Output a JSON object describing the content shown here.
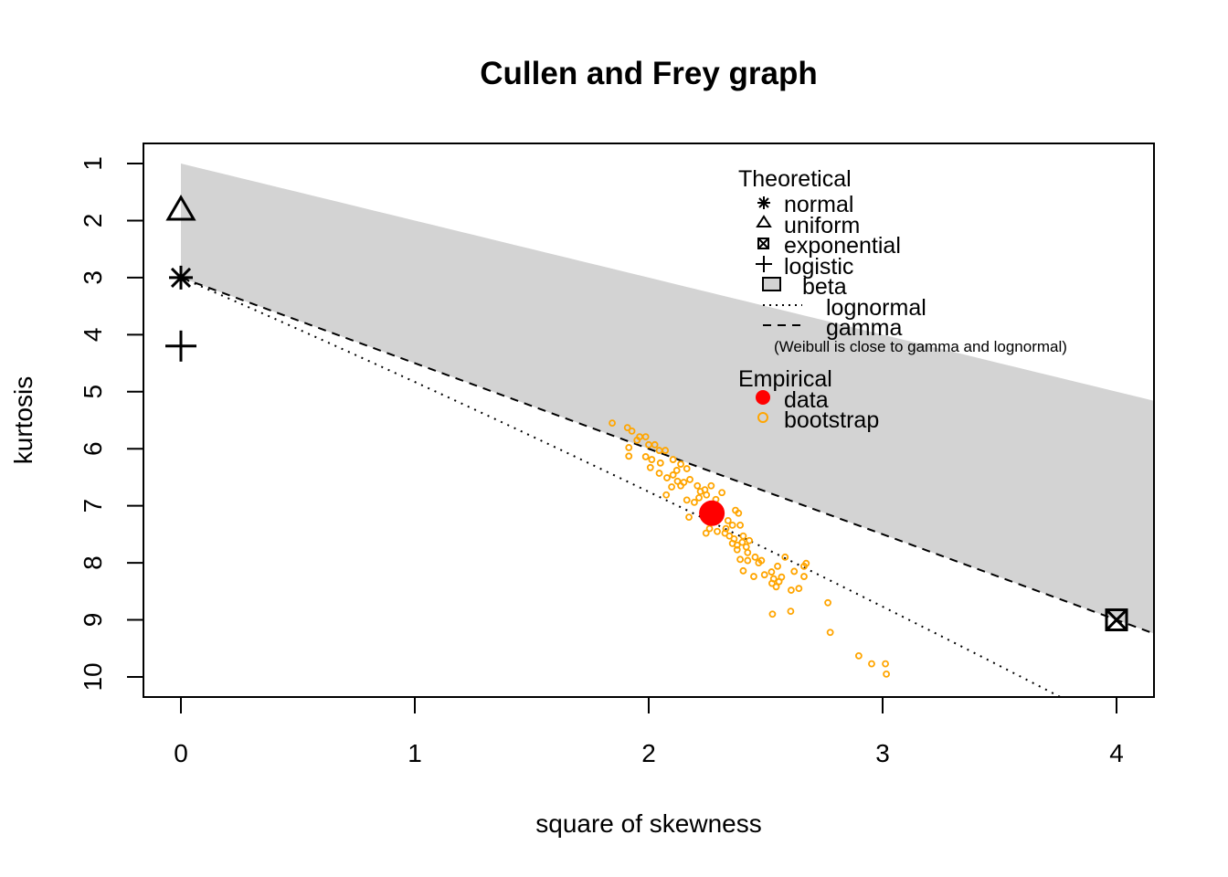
{
  "chart_data": {
    "type": "scatter",
    "title": "Cullen and Frey graph",
    "xlabel": "square of skewness",
    "ylabel": "kurtosis",
    "xlim": [
      -0.16,
      4.16
    ],
    "ylim": [
      10.35,
      0.67
    ],
    "xticks": [
      0,
      1,
      2,
      3,
      4
    ],
    "yticks": [
      1,
      2,
      3,
      4,
      5,
      6,
      7,
      8,
      9,
      10
    ],
    "grid": false,
    "legend": {
      "placement": "top-right",
      "theoretical_title": "Theoretical",
      "theoretical": [
        {
          "label": "normal",
          "marker": "asterisk"
        },
        {
          "label": "uniform",
          "marker": "triangle"
        },
        {
          "label": "exponential",
          "marker": "boxed-x"
        },
        {
          "label": "logistic",
          "marker": "plus"
        },
        {
          "label": "beta",
          "marker": "grey-box"
        },
        {
          "label": "lognormal",
          "marker": "dotted-line"
        },
        {
          "label": "gamma",
          "marker": "dashed-line"
        }
      ],
      "note": "(Weibull is close to gamma and lognormal)",
      "empirical_title": "Empirical",
      "empirical": [
        {
          "label": "data",
          "marker": "filled-circle"
        },
        {
          "label": "bootstrap",
          "marker": "open-circle"
        }
      ]
    },
    "theoretical_points": {
      "normal": [
        0,
        3
      ],
      "uniform": [
        0,
        1.8
      ],
      "logistic": [
        0,
        4.2
      ],
      "exponential": [
        4,
        9
      ]
    },
    "beta_region": "between kurtosis = skew^2 + 1 and gamma line",
    "gamma_line": "kurtosis = 3 + 1.5 * skew^2",
    "lognormal_curve": "parametric",
    "data_point": [
      2.27,
      7.13
    ],
    "bootstrap": [
      [
        1.844,
        5.55
      ],
      [
        1.909,
        5.63
      ],
      [
        1.928,
        5.69
      ],
      [
        1.961,
        5.79
      ],
      [
        1.987,
        5.79
      ],
      [
        1.915,
        5.98
      ],
      [
        1.915,
        6.13
      ],
      [
        2.0,
        5.93
      ],
      [
        2.026,
        5.93
      ],
      [
        2.045,
        6.03
      ],
      [
        2.071,
        6.03
      ],
      [
        1.987,
        6.14
      ],
      [
        2.013,
        6.19
      ],
      [
        2.104,
        6.19
      ],
      [
        2.137,
        6.27
      ],
      [
        2.163,
        6.35
      ],
      [
        2.007,
        6.33
      ],
      [
        2.045,
        6.43
      ],
      [
        2.078,
        6.51
      ],
      [
        2.104,
        6.46
      ],
      [
        2.123,
        6.57
      ],
      [
        2.15,
        6.59
      ],
      [
        2.176,
        6.54
      ],
      [
        2.098,
        6.67
      ],
      [
        2.137,
        6.65
      ],
      [
        2.208,
        6.65
      ],
      [
        2.267,
        6.65
      ],
      [
        2.221,
        6.75
      ],
      [
        2.313,
        6.77
      ],
      [
        2.075,
        6.81
      ],
      [
        2.163,
        6.9
      ],
      [
        2.195,
        6.94
      ],
      [
        2.215,
        6.86
      ],
      [
        2.172,
        7.2
      ],
      [
        2.371,
        7.08
      ],
      [
        2.384,
        7.13
      ],
      [
        2.339,
        7.26
      ],
      [
        2.26,
        7.4
      ],
      [
        2.245,
        7.48
      ],
      [
        2.293,
        7.45
      ],
      [
        2.326,
        7.48
      ],
      [
        2.358,
        7.34
      ],
      [
        2.391,
        7.34
      ],
      [
        2.345,
        7.53
      ],
      [
        2.365,
        7.58
      ],
      [
        2.404,
        7.53
      ],
      [
        2.43,
        7.61
      ],
      [
        2.378,
        7.69
      ],
      [
        2.358,
        7.66
      ],
      [
        2.417,
        7.72
      ],
      [
        2.378,
        7.77
      ],
      [
        2.423,
        7.82
      ],
      [
        2.391,
        7.94
      ],
      [
        2.423,
        7.96
      ],
      [
        2.455,
        7.9
      ],
      [
        2.482,
        7.96
      ],
      [
        2.404,
        8.14
      ],
      [
        2.449,
        8.24
      ],
      [
        2.495,
        8.21
      ],
      [
        2.525,
        8.16
      ],
      [
        2.551,
        8.06
      ],
      [
        2.583,
        7.9
      ],
      [
        2.534,
        8.28
      ],
      [
        2.568,
        8.25
      ],
      [
        2.622,
        8.15
      ],
      [
        2.664,
        8.06
      ],
      [
        2.673,
        8.01
      ],
      [
        2.664,
        8.24
      ],
      [
        2.527,
        8.36
      ],
      [
        2.545,
        8.42
      ],
      [
        2.557,
        8.33
      ],
      [
        2.609,
        8.48
      ],
      [
        2.642,
        8.45
      ],
      [
        2.766,
        8.7
      ],
      [
        2.529,
        8.9
      ],
      [
        2.607,
        8.85
      ],
      [
        2.776,
        9.22
      ],
      [
        2.898,
        9.63
      ],
      [
        2.953,
        9.77
      ],
      [
        3.012,
        9.77
      ],
      [
        3.016,
        9.95
      ],
      [
        2.247,
        6.81
      ],
      [
        2.287,
        6.89
      ],
      [
        1.95,
        5.85
      ],
      [
        2.05,
        6.25
      ],
      [
        2.12,
        6.38
      ],
      [
        2.24,
        6.72
      ],
      [
        2.33,
        7.4
      ],
      [
        2.4,
        7.64
      ],
      [
        2.47,
        8.0
      ]
    ],
    "colors": {
      "beta_fill": "#d3d3d3",
      "data": "#ff0000",
      "bootstrap": "#ffa500",
      "axis": "#000000"
    }
  }
}
